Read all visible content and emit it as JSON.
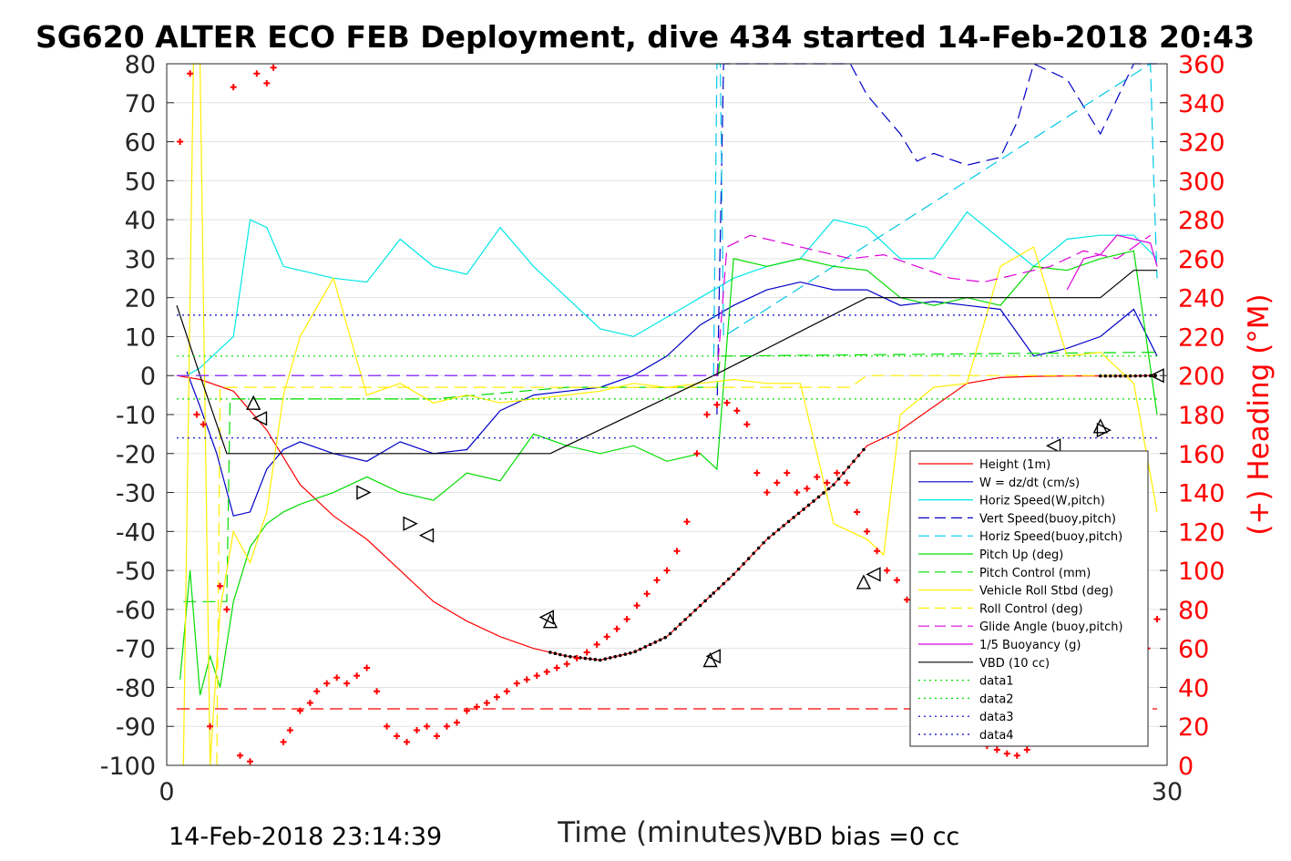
{
  "chart_data": {
    "type": "line",
    "title": "SG620 ALTER ECO FEB Deployment, dive 434 started 14-Feb-2018 20:43",
    "xlabel": "Time (minutes)",
    "ylabel_right": "(+) Heading (°M)",
    "xlim": [
      0,
      30
    ],
    "ylim_left": [
      -100,
      80
    ],
    "ylim_right": [
      0,
      360
    ],
    "x_ticks": [
      "0",
      "30"
    ],
    "y_left_ticks": [
      "80",
      "70",
      "60",
      "50",
      "40",
      "30",
      "20",
      "10",
      "0",
      "-10",
      "-20",
      "-30",
      "-40",
      "-50",
      "-60",
      "-70",
      "-80",
      "-90",
      "-100"
    ],
    "y_right_ticks": [
      "360",
      "340",
      "320",
      "300",
      "280",
      "260",
      "240",
      "220",
      "200",
      "180",
      "160",
      "140",
      "120",
      "100",
      "80",
      "60",
      "40",
      "20",
      "0"
    ],
    "footer_left": "14-Feb-2018 23:14:39",
    "footer_right": "VBD bias =0 cc",
    "legend_position": "lower-right",
    "grid": "horizontal",
    "legend": [
      {
        "label": "Height (1m)",
        "color": "#ff0000",
        "style": "solid"
      },
      {
        "label": "W = dz/dt (cm/s)",
        "color": "#0000c8",
        "style": "solid"
      },
      {
        "label": "Horiz Speed(W,pitch)",
        "color": "#00e6e6",
        "style": "solid"
      },
      {
        "label": "Vert Speed(buoy,pitch)",
        "color": "#0000c8",
        "style": "dashed"
      },
      {
        "label": "Horiz Speed(buoy,pitch)",
        "color": "#00c8e6",
        "style": "dashed"
      },
      {
        "label": "Pitch Up (deg)",
        "color": "#00dd00",
        "style": "solid"
      },
      {
        "label": "Pitch Control (mm)",
        "color": "#00dd00",
        "style": "dashed"
      },
      {
        "label": "Vehicle Roll Stbd (deg)",
        "color": "#ffee00",
        "style": "solid"
      },
      {
        "label": "Roll Control (deg)",
        "color": "#ffee00",
        "style": "dashed"
      },
      {
        "label": "Glide Angle (buoy,pitch)",
        "color": "#dd00dd",
        "style": "dashed"
      },
      {
        "label": "1/5 Buoyancy (g)",
        "color": "#dd00dd",
        "style": "solid"
      },
      {
        "label": "VBD (10 cc)",
        "color": "#000000",
        "style": "solid"
      },
      {
        "label": "data1",
        "color": "#00dd00",
        "style": "dotted"
      },
      {
        "label": "data2",
        "color": "#00dd00",
        "style": "dotted"
      },
      {
        "label": "data3",
        "color": "#0000c8",
        "style": "dotted"
      },
      {
        "label": "data4",
        "color": "#0000c8",
        "style": "dotted"
      }
    ],
    "series": [
      {
        "name": "Height (1m)",
        "color": "#ff0000",
        "dash": "",
        "x": [
          0.3,
          1.0,
          2.0,
          3.0,
          4.0,
          5.0,
          6.0,
          7.0,
          8.0,
          9.0,
          10.0,
          11.0,
          12.0,
          13.0,
          14.0,
          15.0,
          16.0,
          17.0,
          18.0,
          19.0,
          20.0,
          21.0,
          22.0,
          23.0,
          24.0,
          25.0,
          26.0,
          27.0,
          28.0,
          29.0,
          29.7
        ],
        "y": [
          0,
          -1,
          -4,
          -14,
          -28,
          -36,
          -42,
          -50,
          -58,
          -63,
          -67,
          -70,
          -72,
          -73,
          -71,
          -67,
          -59,
          -51,
          -42,
          -35,
          -28,
          -18,
          -14,
          -8,
          -2,
          -0.5,
          -0.2,
          -0.1,
          -0.1,
          -0.1,
          0
        ]
      },
      {
        "name": "W = dz/dt (cm/s)",
        "color": "#0000c8",
        "dash": "",
        "x": [
          0.6,
          1.0,
          1.5,
          2.0,
          2.5,
          3.0,
          3.5,
          4.0,
          5.0,
          6.0,
          7.0,
          8.0,
          9.0,
          10.0,
          11.0,
          12.0,
          13.0,
          14.0,
          15.0,
          16.0,
          17.0,
          18.0,
          19.0,
          20.0,
          21.0,
          22.0,
          23.0,
          24.0,
          25.0,
          26.0,
          27.0,
          28.0,
          29.0,
          29.7
        ],
        "y": [
          1,
          -8,
          -20,
          -36,
          -35,
          -24,
          -19,
          -17,
          -20,
          -22,
          -17,
          -20,
          -19,
          -9,
          -5,
          -4,
          -3,
          0,
          5,
          13,
          18,
          22,
          24,
          22,
          22,
          18,
          19,
          18,
          17,
          5,
          7,
          10,
          17,
          5
        ]
      },
      {
        "name": "Horiz Speed(W,pitch)",
        "color": "#00e6e6",
        "dash": "",
        "x": [
          0.6,
          1.0,
          2.0,
          2.5,
          3.0,
          3.5,
          4.0,
          5.0,
          6.0,
          7.0,
          8.0,
          9.0,
          10.0,
          11.0,
          12.0,
          13.0,
          14.0,
          15.0,
          16.0,
          17.0,
          18.0,
          19.0,
          20.0,
          21.0,
          22.0,
          23.0,
          24.0,
          25.0,
          26.0,
          27.0,
          28.0,
          29.0,
          29.7
        ],
        "y": [
          0,
          2,
          10,
          40,
          38,
          28,
          27,
          25,
          24,
          35,
          28,
          26,
          38,
          28,
          20,
          12,
          10,
          15,
          20,
          25,
          28,
          30,
          40,
          38,
          30,
          30,
          42,
          35,
          28,
          35,
          36,
          36,
          30
        ]
      },
      {
        "name": "Vert Speed(buoy,pitch)",
        "color": "#0000c8",
        "dash": "14,7",
        "x": [
          16.5,
          16.7,
          17.0,
          20.5,
          21.0,
          22.0,
          22.5,
          23.0,
          24.0,
          25.0,
          25.5,
          26.0,
          27.0,
          28.0,
          29.0,
          29.7
        ],
        "y": [
          -10,
          80,
          80,
          80,
          72,
          62,
          55,
          57,
          54,
          56,
          65,
          80,
          76,
          62,
          80,
          80
        ]
      },
      {
        "name": "Horiz Speed(buoy,pitch)",
        "color": "#00c8e6",
        "dash": "14,7",
        "x": [
          16.4,
          16.5,
          16.6,
          16.7,
          29.5,
          29.6,
          29.7
        ],
        "y": [
          0,
          80,
          80,
          10,
          80,
          50,
          25
        ]
      },
      {
        "name": "Pitch Up (deg)",
        "color": "#00dd00",
        "dash": "",
        "x": [
          0.4,
          0.7,
          1.0,
          1.3,
          1.6,
          2.0,
          2.5,
          3.0,
          3.5,
          4.0,
          5.0,
          6.0,
          7.0,
          8.0,
          9.0,
          10.0,
          11.0,
          12.0,
          13.0,
          14.0,
          15.0,
          16.0,
          16.5,
          17.0,
          18.0,
          19.0,
          20.0,
          21.0,
          22.0,
          23.0,
          24.0,
          25.0,
          26.0,
          27.0,
          28.0,
          29.0,
          29.7
        ],
        "y": [
          -78,
          -50,
          -82,
          -72,
          -80,
          -58,
          -44,
          -38,
          -35,
          -33,
          -30,
          -26,
          -30,
          -32,
          -25,
          -27,
          -15,
          -18,
          -20,
          -18,
          -22,
          -20,
          -24,
          30,
          28,
          30,
          28,
          27,
          20,
          18,
          20,
          18,
          28,
          27,
          30,
          32,
          -10
        ]
      },
      {
        "name": "Pitch Control (mm)",
        "color": "#00dd00",
        "dash": "14,7",
        "x": [
          0.5,
          1.8,
          1.9,
          8.0,
          12.0,
          16.5,
          16.6,
          29.7
        ],
        "y": [
          -58,
          -58,
          -6,
          -6,
          -3,
          -3,
          5,
          6
        ]
      },
      {
        "name": "Vehicle Roll Stbd (deg)",
        "color": "#ffee00",
        "dash": "",
        "x": [
          0.5,
          0.8,
          1.0,
          1.3,
          1.6,
          2.0,
          2.5,
          3.0,
          3.5,
          4.0,
          5.0,
          6.0,
          7.0,
          8.0,
          9.0,
          10.0,
          11.0,
          12.0,
          13.0,
          14.0,
          15.0,
          16.0,
          17.0,
          18.0,
          19.0,
          20.0,
          21.0,
          21.5,
          22.0,
          23.0,
          24.0,
          25.0,
          26.0,
          27.0,
          28.0,
          29.0,
          29.7
        ],
        "y": [
          -100,
          80,
          80,
          -100,
          -60,
          -40,
          -48,
          -35,
          -5,
          10,
          25,
          -5,
          -2,
          -7,
          -5,
          -7,
          -6,
          -5,
          -4,
          -2,
          -3,
          -2,
          -1,
          -2,
          -2,
          -38,
          -42,
          -46,
          -10,
          -3,
          -2,
          28,
          33,
          5,
          6,
          -2,
          -35
        ]
      },
      {
        "name": "Roll Control (deg)",
        "color": "#ffee00",
        "dash": "14,7",
        "x": [
          1.5,
          1.6,
          1.7,
          12.0,
          16.5,
          20.5,
          21.0,
          25.0,
          29.0
        ],
        "y": [
          -100,
          -3,
          -3,
          -3,
          -3,
          -3,
          0,
          0,
          0
        ]
      },
      {
        "name": "Glide Angle (buoy,pitch)",
        "color": "#dd00dd",
        "dash": "14,7",
        "x": [
          0.3,
          16.5,
          16.8,
          17.5,
          18.5,
          19.5,
          20.5,
          21.5,
          22.5,
          23.5,
          24.5,
          25.5,
          26.5,
          27.5,
          28.5,
          29.5
        ],
        "y": [
          0,
          0,
          33,
          36,
          34,
          32,
          30,
          31,
          28,
          25,
          24,
          26,
          28,
          32,
          30,
          36
        ]
      },
      {
        "name": "1/5 Buoyancy (g)",
        "color": "#dd00dd",
        "dash": "",
        "x": [
          27.0,
          27.5,
          28.0,
          28.5,
          29.0,
          29.5,
          29.7
        ],
        "y": [
          22,
          30,
          31,
          36,
          35,
          34,
          28
        ]
      },
      {
        "name": "VBD (10 cc)",
        "color": "#000000",
        "dash": "",
        "x": [
          0.3,
          1.0,
          1.8,
          11.5,
          16.4,
          21.0,
          28.0,
          29.0,
          29.7
        ],
        "y": [
          18,
          0,
          -20,
          -20,
          0,
          20,
          20,
          27,
          27
        ]
      },
      {
        "name": "data1",
        "color": "#00dd00",
        "dash": "2,4",
        "x": [
          0.3,
          29.7
        ],
        "y": [
          -6,
          -6
        ]
      },
      {
        "name": "data2",
        "color": "#00dd00",
        "dash": "2,4",
        "x": [
          0.3,
          29.7
        ],
        "y": [
          5,
          5
        ]
      },
      {
        "name": "data3",
        "color": "#0000c8",
        "dash": "2,4",
        "x": [
          0.3,
          29.7
        ],
        "y": [
          15.5,
          15.5
        ]
      },
      {
        "name": "data4",
        "color": "#0000c8",
        "dash": "2,4",
        "x": [
          0.3,
          29.7
        ],
        "y": [
          -16,
          -16
        ]
      },
      {
        "name": "",
        "color": "#ff0000",
        "dash": "14,7",
        "x": [
          0.3,
          29.7
        ],
        "y": [
          -85.5,
          -85.5
        ]
      },
      {
        "name": "",
        "color": "#7733ff",
        "dash": "14,7",
        "x": [
          0.3,
          16.4
        ],
        "y": [
          0,
          0
        ]
      }
    ],
    "heading_points": {
      "color": "#ff0000",
      "x": [
        0.4,
        0.7,
        0.9,
        1.1,
        1.3,
        1.6,
        1.8,
        2.0,
        2.2,
        2.5,
        2.7,
        3.0,
        3.2,
        3.5,
        3.7,
        4.0,
        4.3,
        4.5,
        4.8,
        5.1,
        5.4,
        5.7,
        6.0,
        6.3,
        6.6,
        6.9,
        7.2,
        7.5,
        7.8,
        8.1,
        8.4,
        8.7,
        9.0,
        9.3,
        9.6,
        9.9,
        10.2,
        10.5,
        10.8,
        11.1,
        11.4,
        11.7,
        12.0,
        12.3,
        12.6,
        12.9,
        13.2,
        13.5,
        13.8,
        14.1,
        14.4,
        14.7,
        15.0,
        15.3,
        15.6,
        15.9,
        16.2,
        16.5,
        16.8,
        17.1,
        17.4,
        17.7,
        18.0,
        18.3,
        18.6,
        18.9,
        19.2,
        19.5,
        19.8,
        20.1,
        20.4,
        20.7,
        21.0,
        21.3,
        21.6,
        21.9,
        22.2,
        22.5,
        22.8,
        23.1,
        23.4,
        23.7,
        24.0,
        24.3,
        24.6,
        24.9,
        25.2,
        25.5,
        25.8,
        26.1,
        26.4,
        26.7,
        27.0,
        27.3,
        27.6,
        27.9,
        28.2,
        28.5,
        28.8,
        29.1,
        29.4,
        29.7
      ],
      "y": [
        320,
        355,
        180,
        175,
        20,
        92,
        80,
        348,
        5,
        2,
        355,
        350,
        358,
        12,
        18,
        28,
        32,
        38,
        42,
        45,
        42,
        46,
        50,
        38,
        20,
        15,
        12,
        18,
        20,
        15,
        20,
        22,
        28,
        30,
        32,
        35,
        38,
        42,
        44,
        46,
        48,
        50,
        52,
        55,
        58,
        62,
        66,
        70,
        75,
        82,
        88,
        95,
        100,
        110,
        125,
        160,
        180,
        185,
        186,
        182,
        175,
        150,
        140,
        145,
        150,
        140,
        142,
        148,
        145,
        150,
        145,
        130,
        120,
        110,
        100,
        95,
        85,
        70,
        55,
        40,
        30,
        20,
        15,
        12,
        10,
        8,
        6,
        5,
        8,
        12,
        15,
        20,
        25,
        35,
        45,
        55,
        65,
        75,
        80,
        70,
        60,
        75
      ]
    },
    "triangle_markers": {
      "x": [
        2.6,
        2.8,
        5.9,
        7.3,
        7.8,
        11.4,
        11.5,
        16.3,
        16.4,
        20.9,
        21.2,
        24.0,
        26.6,
        28.0,
        28.1,
        29.7
      ],
      "y": [
        -7,
        -11,
        -30,
        -38,
        -41,
        -62,
        -63,
        -73,
        -72,
        -53,
        -51,
        -35,
        -18,
        -13,
        -14,
        0
      ],
      "dir": [
        "up",
        "left",
        "right",
        "right",
        "left",
        "left",
        "up",
        "up",
        "left",
        "up",
        "left",
        "right",
        "left",
        "up",
        "right",
        "left"
      ]
    },
    "dotted_black_ranges": [
      [
        11.5,
        16.4
      ],
      [
        16.4,
        21.0
      ],
      [
        28.0,
        29.7
      ]
    ]
  }
}
